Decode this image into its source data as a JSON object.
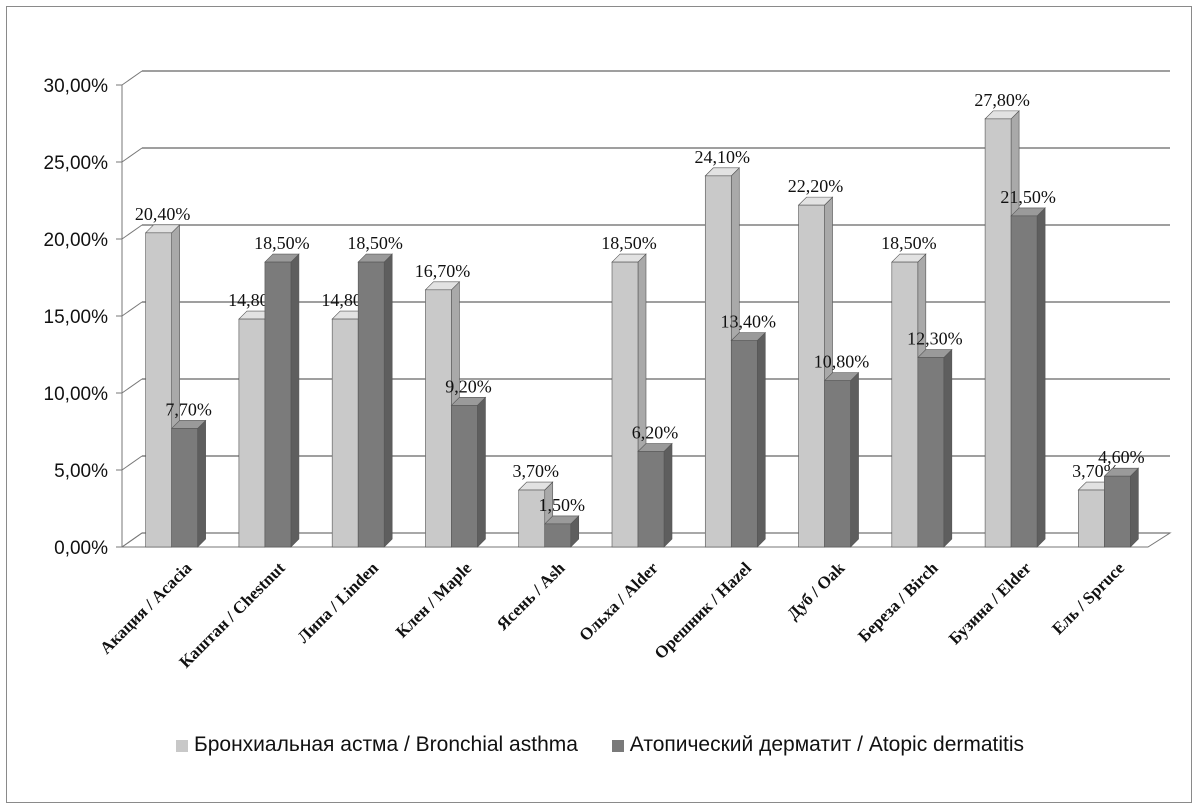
{
  "chart_data": {
    "type": "bar",
    "title": "",
    "xlabel": "",
    "ylabel": "",
    "ylim": [
      0,
      30
    ],
    "y_ticks": [
      "0,00%",
      "5,00%",
      "10,00%",
      "15,00%",
      "20,00%",
      "25,00%",
      "30,00%"
    ],
    "grid": true,
    "legend_position": "bottom",
    "categories": [
      "Акация / Acacia",
      "Каштан / Chestnut",
      "Липа / Linden",
      "Клен / Maple",
      "Ясень / Ash",
      "Ольха / Alder",
      "Орешник / Hazel",
      "Дуб / Oak",
      "Береза / Birch",
      "Бузина / Elder",
      "Ель / Spruce"
    ],
    "series": [
      {
        "name": "Бронхиальная астма / Bronchial asthma",
        "color": "#c8c8c8",
        "values": [
          20.4,
          14.8,
          14.8,
          16.7,
          3.7,
          18.5,
          24.1,
          22.2,
          18.5,
          27.8,
          3.7
        ],
        "labels": [
          "20,40%",
          "14,80%",
          "14,80%",
          "16,70%",
          "3,70%",
          "18,50%",
          "24,10%",
          "22,20%",
          "18,50%",
          "27,80%",
          "3,70%"
        ]
      },
      {
        "name": "Атопический дерматит / Atopic dermatitis",
        "color": "#7a7a7a",
        "values": [
          7.7,
          18.5,
          18.5,
          9.2,
          1.5,
          6.2,
          13.4,
          10.8,
          12.3,
          21.5,
          4.6
        ],
        "labels": [
          "7,70%",
          "18,50%",
          "18,50%",
          "9,20%",
          "1,50%",
          "6,20%",
          "13,40%",
          "10,80%",
          "12,30%",
          "21,50%",
          "4,60%"
        ]
      }
    ]
  }
}
